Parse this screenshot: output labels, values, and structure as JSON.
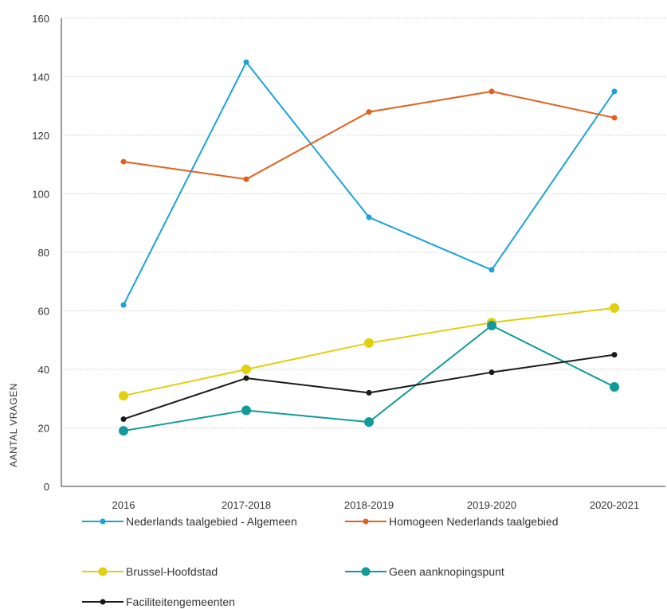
{
  "chart_data": {
    "type": "line",
    "categories": [
      "2016",
      "2017-2018",
      "2018-2019",
      "2019-2020",
      "2020-2021"
    ],
    "ylabel": "AANTAL VRAGEN",
    "xlabel": "",
    "ylim": [
      0,
      160
    ],
    "yticks": [
      0,
      20,
      40,
      60,
      80,
      100,
      120,
      140,
      160
    ],
    "grid": "horizontal dotted",
    "legend_position": "bottom",
    "series": [
      {
        "name": "Nederlands taalgebied - Algemeen",
        "values": [
          62,
          145,
          92,
          74,
          135
        ],
        "color": "#1aa3d9",
        "marker": "small"
      },
      {
        "name": "Homogeen Nederlands taalgebied",
        "values": [
          111,
          105,
          128,
          135,
          126
        ],
        "color": "#e2601c",
        "marker": "small"
      },
      {
        "name": "Brussel-Hoofdstad",
        "values": [
          31,
          40,
          49,
          56,
          61
        ],
        "color": "#e2cf0e",
        "marker": "large"
      },
      {
        "name": "Geen aanknopingspunt",
        "values": [
          19,
          26,
          22,
          55,
          34
        ],
        "color": "#109b98",
        "marker": "large"
      },
      {
        "name": "Faciliteitengemeenten",
        "values": [
          23,
          37,
          32,
          39,
          45
        ],
        "color": "#1a1a1a",
        "marker": "small"
      }
    ]
  }
}
